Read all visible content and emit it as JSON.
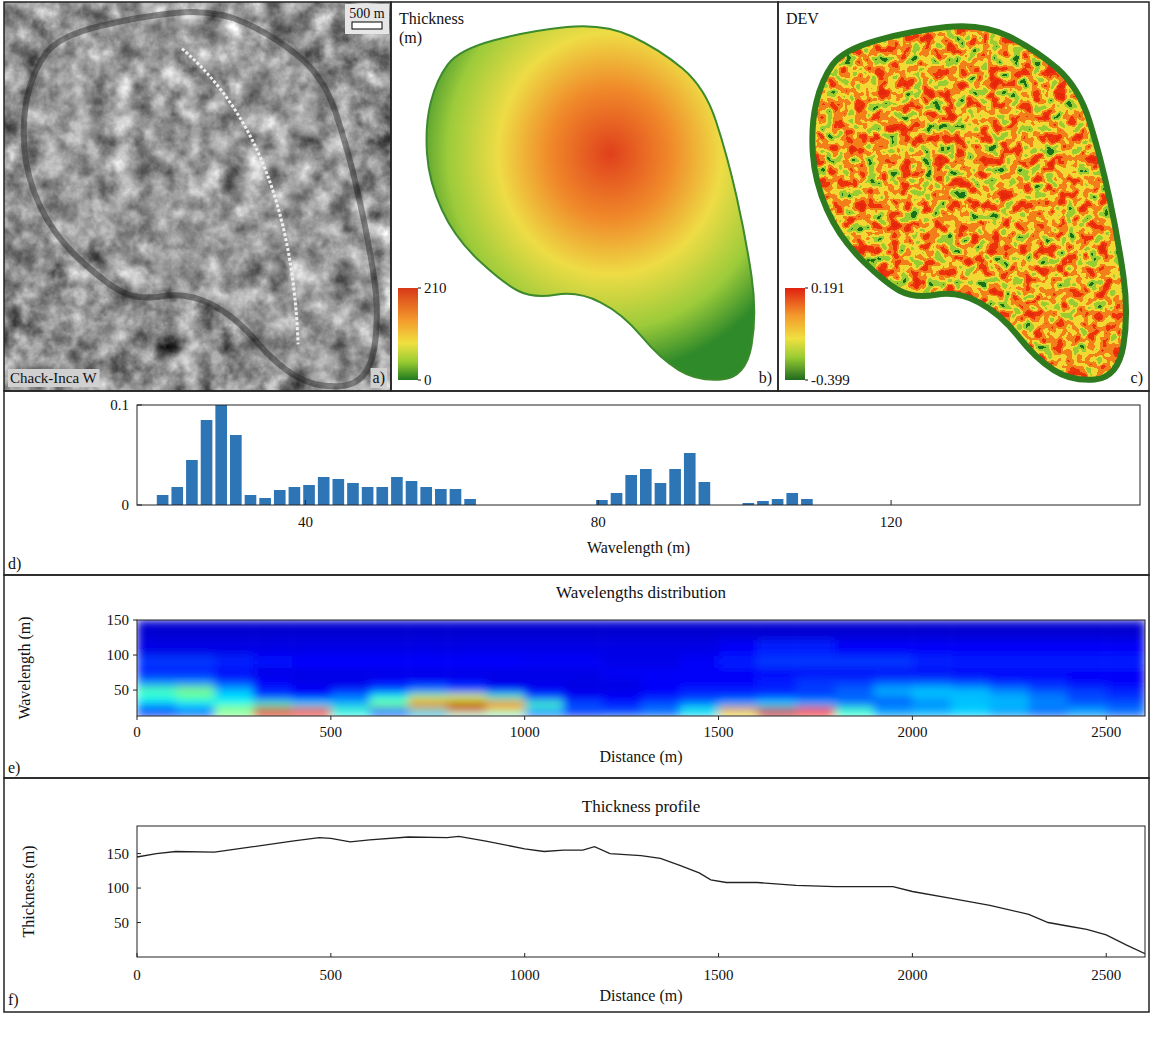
{
  "chart_data": [
    {
      "type": "image",
      "label": "Chack-Inca W",
      "scale_bar": "500 m",
      "panel_label": "a)"
    },
    {
      "type": "map",
      "title": "Thickness (m)",
      "color_range": [
        0,
        210
      ],
      "color_ticks": [
        0,
        210
      ],
      "panel_label": "b)"
    },
    {
      "type": "map",
      "title": "DEV",
      "color_range": [
        -0.399,
        0.191
      ],
      "color_ticks": [
        -0.399,
        0.191
      ],
      "panel_label": "c)"
    },
    {
      "type": "histogram",
      "xlabel": "Wavelength (m)",
      "panel_label": "d)",
      "bins": [
        19.5,
        21.5,
        23.5,
        25.5,
        27.5,
        29.5,
        31.5,
        33.5,
        35.5,
        37.5,
        39.5,
        41.5,
        43.5,
        45.5,
        47.5,
        49.5,
        51.5,
        53.5,
        55.5,
        57.5,
        59.5,
        61.5,
        63.5,
        65.5,
        67.5,
        69.5,
        71.5,
        73.5,
        75.5,
        77.5,
        79.5,
        81.5,
        83.5,
        85.5,
        87.5,
        89.5,
        91.5,
        93.5,
        95.5,
        97.5,
        99.5,
        101.5,
        103.5,
        105.5,
        107.5,
        109.5
      ],
      "values": [
        0.01,
        0.018,
        0.045,
        0.085,
        0.1,
        0.07,
        0.01,
        0.007,
        0.015,
        0.018,
        0.02,
        0.028,
        0.026,
        0.022,
        0.018,
        0.018,
        0.028,
        0.024,
        0.018,
        0.016,
        0.016,
        0.006,
        0,
        0,
        0,
        0,
        0,
        0,
        0,
        0,
        0.005,
        0.012,
        0.03,
        0.036,
        0.022,
        0.036,
        0.052,
        0.023,
        0,
        0,
        0.002,
        0.004,
        0.006,
        0.012,
        0.006
      ],
      "color": "#2e75b6",
      "xlim": [
        17,
        154
      ],
      "xticks": [
        40,
        80,
        120
      ],
      "ylim": [
        0,
        0.1
      ],
      "yticks": [
        0,
        0.1
      ]
    },
    {
      "type": "heatmap",
      "title": "Wavelengths distribution",
      "xlabel": "Distance (m)",
      "ylabel": "Wavelength (m)",
      "panel_label": "e)",
      "x": [
        50,
        150,
        250,
        350,
        450,
        550,
        650,
        750,
        850,
        950,
        1050,
        1150,
        1250,
        1350,
        1450,
        1550,
        1650,
        1750,
        1850,
        1950,
        2050,
        2150,
        2250,
        2350,
        2450,
        2550
      ],
      "y": [
        15,
        22,
        30,
        40,
        50,
        62,
        75,
        90,
        110,
        135
      ],
      "values": [
        [
          0.15,
          0.2,
          0.45,
          0.85,
          0.8,
          0.35,
          0.2,
          0.25,
          0.4,
          0.35,
          0.2,
          0.15,
          0.2,
          0.2,
          0.3,
          0.6,
          0.9,
          0.8,
          0.4,
          0.25,
          0.3,
          0.3,
          0.25,
          0.2,
          0.25,
          0.2
        ],
        [
          0.2,
          0.25,
          0.55,
          0.95,
          0.9,
          0.45,
          0.25,
          0.45,
          0.75,
          0.6,
          0.3,
          0.2,
          0.2,
          0.25,
          0.4,
          0.75,
          0.97,
          0.88,
          0.45,
          0.3,
          0.3,
          0.35,
          0.3,
          0.25,
          0.3,
          0.25
        ],
        [
          0.3,
          0.35,
          0.4,
          0.45,
          0.35,
          0.3,
          0.5,
          0.85,
          0.97,
          0.85,
          0.45,
          0.2,
          0.15,
          0.2,
          0.25,
          0.3,
          0.35,
          0.3,
          0.25,
          0.2,
          0.25,
          0.3,
          0.3,
          0.25,
          0.2,
          0.2
        ],
        [
          0.4,
          0.45,
          0.35,
          0.2,
          0.15,
          0.25,
          0.4,
          0.55,
          0.6,
          0.45,
          0.2,
          0.12,
          0.12,
          0.15,
          0.18,
          0.18,
          0.2,
          0.2,
          0.22,
          0.25,
          0.3,
          0.32,
          0.3,
          0.25,
          0.2,
          0.18
        ],
        [
          0.45,
          0.5,
          0.3,
          0.15,
          0.12,
          0.15,
          0.2,
          0.25,
          0.2,
          0.15,
          0.12,
          0.1,
          0.1,
          0.12,
          0.15,
          0.15,
          0.15,
          0.18,
          0.22,
          0.3,
          0.32,
          0.3,
          0.25,
          0.2,
          0.18,
          0.15
        ],
        [
          0.25,
          0.25,
          0.18,
          0.12,
          0.1,
          0.1,
          0.12,
          0.12,
          0.12,
          0.1,
          0.1,
          0.1,
          0.1,
          0.12,
          0.12,
          0.12,
          0.15,
          0.18,
          0.18,
          0.2,
          0.2,
          0.18,
          0.15,
          0.15,
          0.12,
          0.12
        ],
        [
          0.15,
          0.15,
          0.12,
          0.1,
          0.1,
          0.1,
          0.1,
          0.1,
          0.1,
          0.1,
          0.1,
          0.1,
          0.12,
          0.12,
          0.12,
          0.12,
          0.12,
          0.12,
          0.12,
          0.12,
          0.12,
          0.12,
          0.12,
          0.12,
          0.12,
          0.12
        ],
        [
          0.18,
          0.18,
          0.16,
          0.14,
          0.13,
          0.13,
          0.13,
          0.13,
          0.13,
          0.13,
          0.12,
          0.12,
          0.1,
          0.1,
          0.12,
          0.15,
          0.18,
          0.18,
          0.18,
          0.18,
          0.16,
          0.15,
          0.15,
          0.15,
          0.15,
          0.15
        ],
        [
          0.1,
          0.1,
          0.1,
          0.1,
          0.1,
          0.1,
          0.1,
          0.1,
          0.1,
          0.1,
          0.1,
          0.1,
          0.1,
          0.1,
          0.1,
          0.12,
          0.15,
          0.15,
          0.12,
          0.12,
          0.12,
          0.12,
          0.12,
          0.12,
          0.12,
          0.12
        ],
        [
          0.08,
          0.08,
          0.08,
          0.08,
          0.08,
          0.08,
          0.08,
          0.08,
          0.08,
          0.08,
          0.08,
          0.08,
          0.08,
          0.08,
          0.08,
          0.08,
          0.08,
          0.08,
          0.08,
          0.08,
          0.08,
          0.08,
          0.08,
          0.08,
          0.08,
          0.08
        ]
      ],
      "color_range": [
        0,
        1
      ],
      "xlim": [
        0,
        2600
      ],
      "xticks": [
        0,
        500,
        1000,
        1500,
        2000,
        2500
      ],
      "ylim": [
        13,
        150
      ],
      "yticks": [
        50,
        100,
        150
      ]
    },
    {
      "type": "line",
      "title": "Thickness profile",
      "xlabel": "Distance (m)",
      "ylabel": "Thickness (m)",
      "panel_label": "f)",
      "x": [
        0,
        50,
        100,
        200,
        300,
        400,
        470,
        500,
        550,
        600,
        700,
        800,
        830,
        900,
        1000,
        1050,
        1100,
        1150,
        1180,
        1220,
        1300,
        1350,
        1400,
        1450,
        1480,
        1520,
        1600,
        1700,
        1800,
        1900,
        1950,
        2000,
        2100,
        2200,
        2300,
        2350,
        2400,
        2450,
        2500,
        2550,
        2600
      ],
      "values": [
        145,
        150,
        153,
        152,
        160,
        168,
        173,
        172,
        167,
        170,
        174,
        173,
        175,
        168,
        157,
        153,
        155,
        155,
        160,
        150,
        147,
        143,
        133,
        122,
        112,
        108,
        108,
        104,
        102,
        102,
        102,
        95,
        85,
        75,
        62,
        50,
        45,
        40,
        32,
        18,
        5
      ],
      "color": "#222222",
      "xlim": [
        0,
        2600
      ],
      "xticks": [
        0,
        500,
        1000,
        1500,
        2000,
        2500
      ],
      "ylim": [
        0,
        190
      ],
      "yticks": [
        50,
        100,
        150
      ]
    }
  ]
}
